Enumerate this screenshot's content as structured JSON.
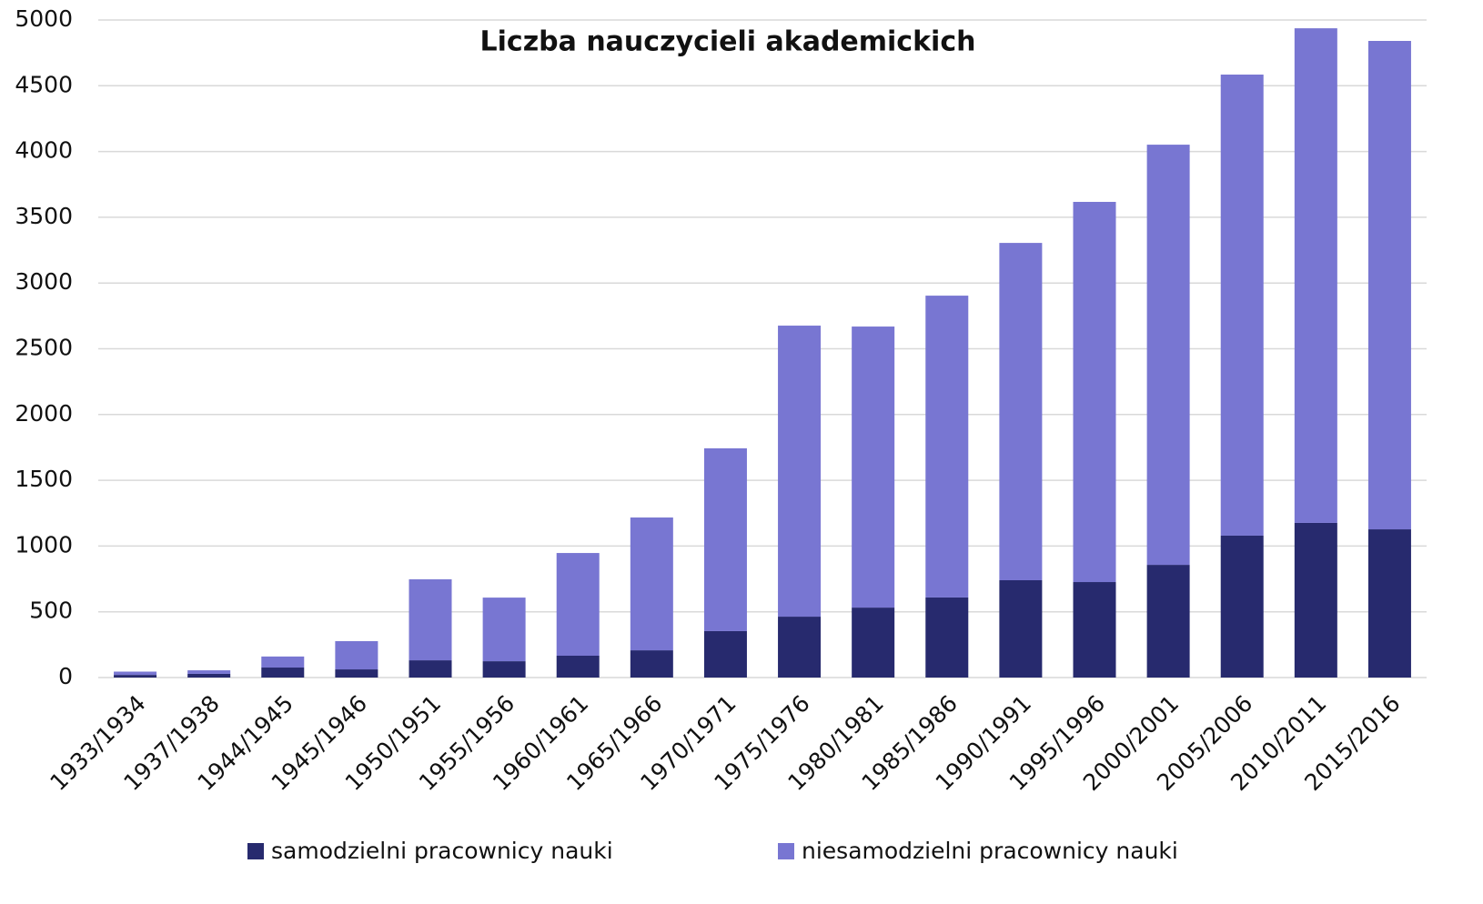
{
  "chart_data": {
    "type": "stacked_bar",
    "title": "Liczba nauczycieli akademickich",
    "categories": [
      "1933/1934",
      "1937/1938",
      "1944/1945",
      "1945/1946",
      "1950/1951",
      "1955/1956",
      "1960/1961",
      "1965/1966",
      "1970/1971",
      "1975/1976",
      "1980/1981",
      "1985/1986",
      "1990/1991",
      "1995/1996",
      "2000/2001",
      "2005/2006",
      "2010/2011",
      "2015/2016"
    ],
    "series": [
      {
        "name": "samodzielni pracownicy nauki",
        "color": "#272a6e",
        "values": [
          20,
          28,
          76,
          62,
          131,
          124,
          166,
          207,
          353,
          463,
          532,
          609,
          740,
          726,
          857,
          1079,
          1176,
          1127
        ]
      },
      {
        "name": "niesamodzielni pracownicy nauki",
        "color": "#7876d2",
        "values": [
          25,
          27,
          84,
          215,
          616,
          484,
          781,
          1010,
          1390,
          2213,
          2137,
          2295,
          2565,
          2891,
          3195,
          3506,
          3761,
          3714
        ]
      }
    ],
    "ylim": [
      0,
      5000
    ],
    "yticks": [
      0,
      500,
      1000,
      1500,
      2000,
      2500,
      3000,
      3500,
      4000,
      4500,
      5000
    ],
    "grid": true
  }
}
